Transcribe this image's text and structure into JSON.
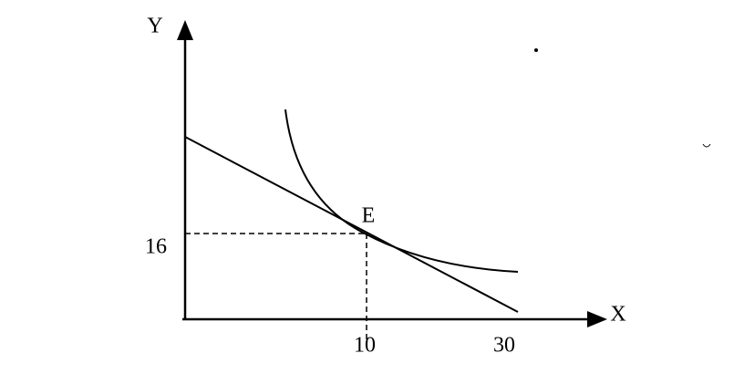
{
  "axes": {
    "y_label": "Y",
    "x_label": "X"
  },
  "point": {
    "label": "E"
  },
  "ticks": {
    "y": "16",
    "x": [
      "10",
      "30"
    ]
  }
}
